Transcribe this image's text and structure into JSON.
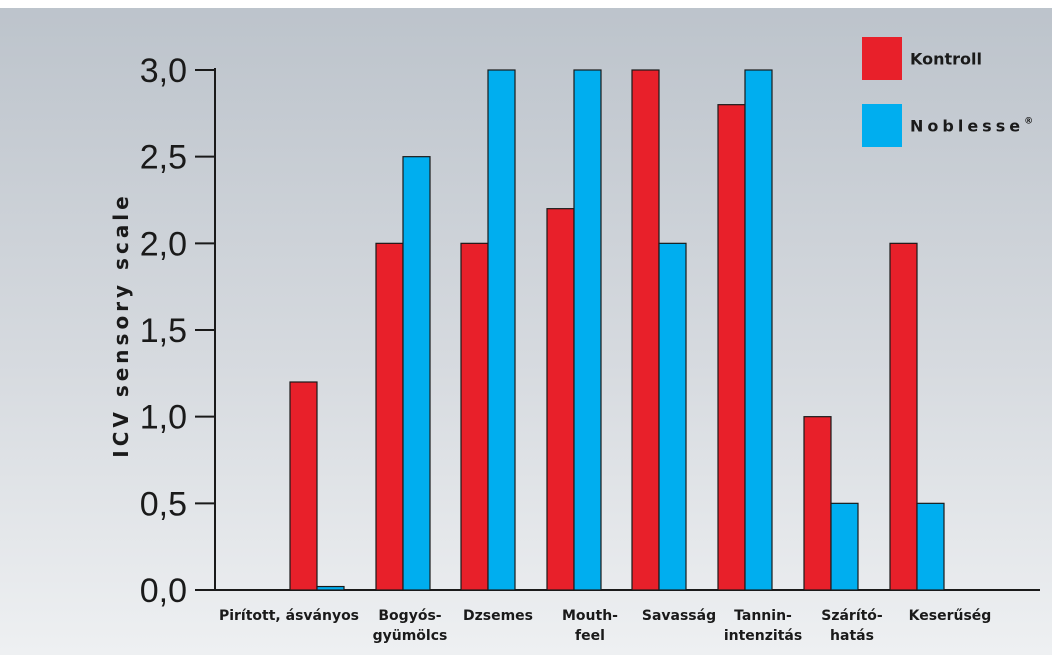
{
  "chart_data": {
    "type": "bar",
    "title": "",
    "xlabel": "",
    "ylabel": "ICV sensory scale",
    "ylim": [
      0,
      3
    ],
    "yticks": [
      "0,0",
      "0,5",
      "1,0",
      "1,5",
      "2,0",
      "2,5",
      "3,0"
    ],
    "grid": false,
    "legend_position": "top-right",
    "categories": [
      [
        "Pirított, ásványos"
      ],
      [
        "Bogyós-",
        "gyümölcs"
      ],
      [
        "Dzsemes"
      ],
      [
        "Mouth-",
        "feel"
      ],
      [
        "Savasság"
      ],
      [
        "Tannin-",
        "intenzitás"
      ],
      [
        "Szárító-",
        "hatás"
      ],
      [
        "Keserűség"
      ]
    ],
    "series": [
      {
        "name": "Kontroll",
        "color": "#e8202a",
        "values": [
          1.2,
          2.0,
          2.0,
          2.2,
          3.0,
          2.8,
          1.0,
          2.0
        ]
      },
      {
        "name": "Noblesse",
        "superscript": "®",
        "color": "#00aeef",
        "values": [
          0.02,
          2.5,
          3.0,
          3.0,
          2.0,
          3.0,
          0.5,
          0.5
        ]
      }
    ]
  }
}
